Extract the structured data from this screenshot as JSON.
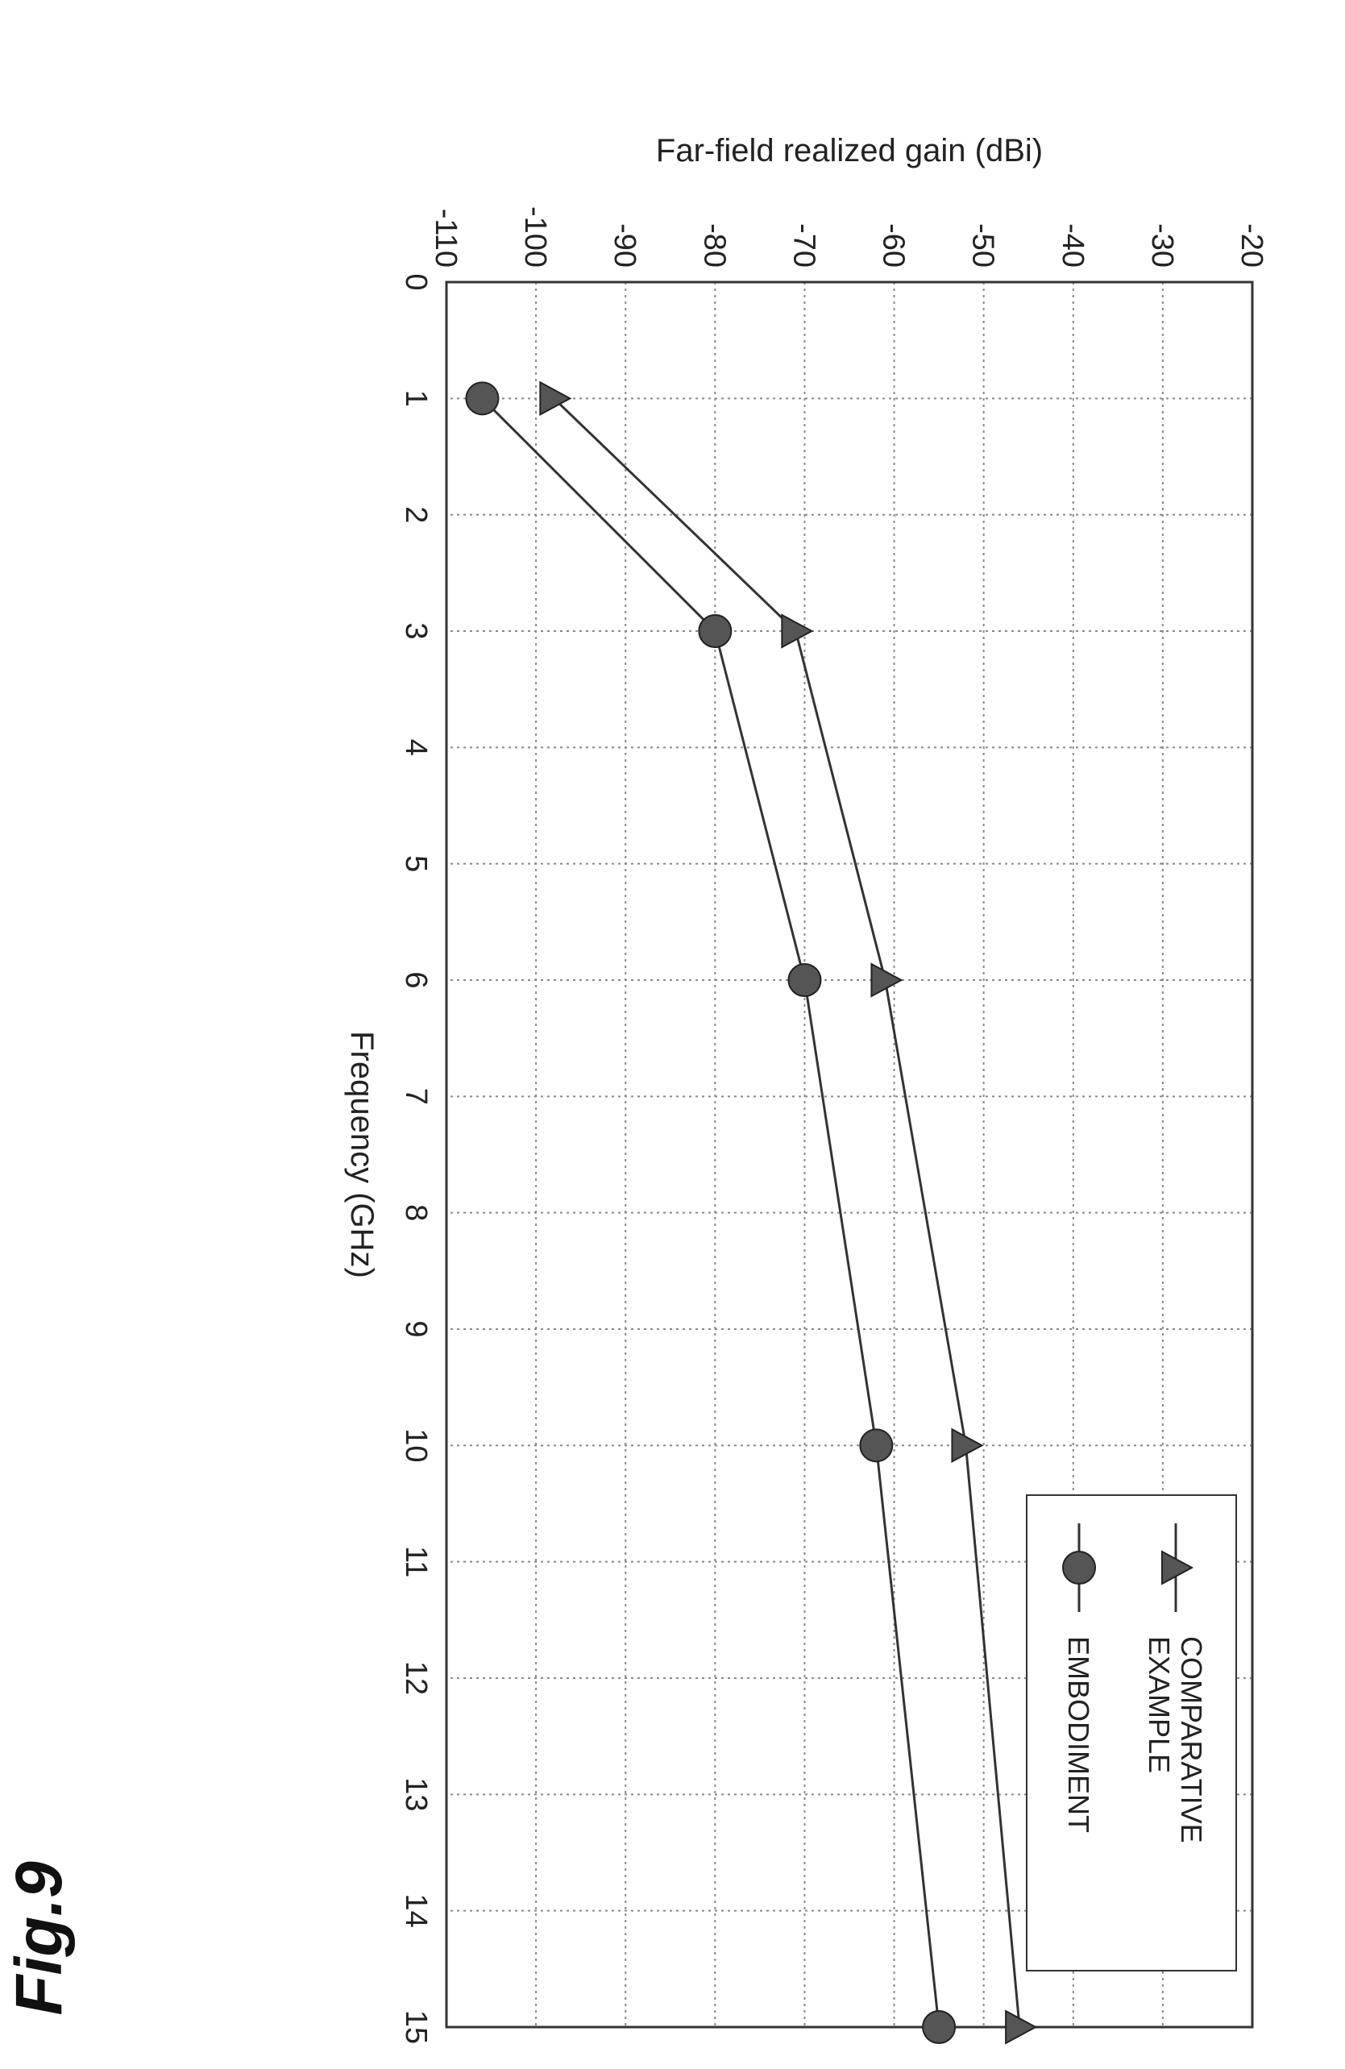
{
  "figure_label": "Fig.9",
  "chart_data": {
    "type": "line",
    "title": "",
    "xlabel": "Frequency (GHz)",
    "ylabel": "Far-field realized gain (dBi)",
    "xlim": [
      0,
      15
    ],
    "ylim": [
      -110,
      -20
    ],
    "xticks": [
      "0",
      "1",
      "2",
      "3",
      "4",
      "5",
      "6",
      "7",
      "8",
      "9",
      "10",
      "11",
      "12",
      "13",
      "14",
      "15"
    ],
    "yticks": [
      "-110",
      "-100",
      "-90",
      "-80",
      "-70",
      "-60",
      "-50",
      "-40",
      "-30",
      "-20"
    ],
    "grid": true,
    "legend_position": "top-right",
    "x": [
      1,
      3,
      6,
      10,
      15
    ],
    "series": [
      {
        "name": "COMPARATIVE EXAMPLE",
        "label_lines": [
          "COMPARATIVE",
          "EXAMPLE"
        ],
        "marker": "triangle",
        "values": [
          -98,
          -71,
          -61,
          -52,
          -46
        ]
      },
      {
        "name": "EMBODIMENT",
        "label_lines": [
          "EMBODIMENT"
        ],
        "marker": "circle",
        "values": [
          -106,
          -80,
          -70,
          -62,
          -55
        ]
      }
    ]
  },
  "colors": {
    "line": "#333333",
    "grid": "#888888",
    "marker": "#555555",
    "frame": "#333333"
  }
}
